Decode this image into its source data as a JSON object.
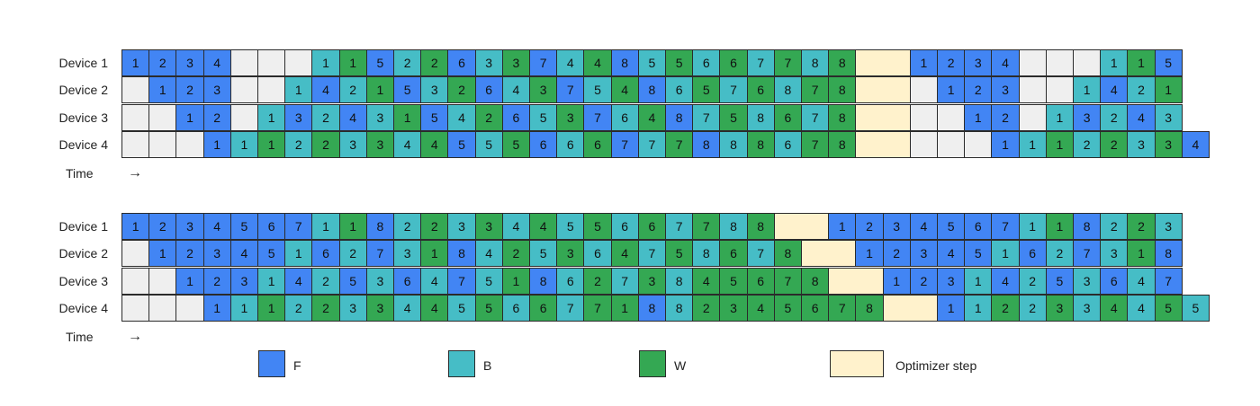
{
  "colors": {
    "F": "#4285f4",
    "B": "#46bdc6",
    "W": "#34a853",
    "O": "#fff2cc",
    "E": "#efefef"
  },
  "time_label": "Time",
  "time_arrow": "→",
  "legend": [
    {
      "key": "F",
      "label": "F"
    },
    {
      "key": "B",
      "label": "B"
    },
    {
      "key": "W",
      "label": "W"
    },
    {
      "key": "O",
      "label": "Optimizer step"
    }
  ],
  "schedules": [
    {
      "rows": [
        {
          "label": "Device 1",
          "cells": "F1 F2 F3 F4 E E E B1 W1 F5 B2 W2 F6 B3 W3 F7 B4 W4 F8 B5 W5 B6 W6 B7 W7 B8 W8 O2 F1 F2 F3 F4 E E E B1 W1 F5"
        },
        {
          "label": "Device 2",
          "cells": "E F1 F2 F3 E E B1 F4 B2 W1 F5 B3 W2 F6 B4 W3 F7 B5 W4 F8 B6 W5 B7 W6 B8 W7 W8 O2 E F1 F2 F3 E E B1 F4 B2 W1"
        },
        {
          "label": "Device 3",
          "cells": "E E F1 F2 E B1 F3 B2 F4 B3 W1 F5 B4 W2 F6 B5 W3 F7 B6 W4 F8 B7 W5 B8 W6 B7 W8 O2 E E F1 F2 E B1 F3 B2 F4 B3"
        },
        {
          "label": "Device 4",
          "cells": "E E E F1 B1 W1 B2 W2 B3 W3 B4 W4 F5 B5 W5 F6 B6 W6 F7 B7 W7 F8 B8 W8 B6 W7 W8 O2 E E E F1 B1 W1 B2 W2 B3 W3 F4"
        }
      ]
    },
    {
      "rows": [
        {
          "label": "Device 1",
          "cells": "F1 F2 F3 F4 F5 F6 F7 B1 W1 F8 B2 W2 B3 W3 B4 W4 B5 W5 B6 W6 B7 W7 B8 W8 O2 F1 F2 F3 F4 F5 F6 F7 B1 W1 F8 B2 W2 B3"
        },
        {
          "label": "Device 2",
          "cells": "E F1 F2 F3 F4 F5 B1 F6 B2 F7 B3 W1 F8 B4 W2 B5 W3 B6 W4 B7 W5 B8 W6 B7 W8 O2 F1 F2 F3 F4 F5 B1 F6 B2 F7 B3 W1 F8"
        },
        {
          "label": "Device 3",
          "cells": "E E F1 F2 F3 B1 F4 B2 F5 B3 F6 B4 F7 B5 W1 F8 B6 W2 B7 W3 B8 W4 W5 W6 W7 W8 O2 F1 F2 F3 B1 F4 B2 F5 B3 F6 B4 F7"
        },
        {
          "label": "Device 4",
          "cells": "E E E F1 B1 W1 B2 W2 B3 W3 B4 W4 B5 W5 B6 W6 B7 W7 W1 F8 B8 W2 W3 W4 W5 W6 W7 W8 O2 F1 B1 W2 B2 W3 B3 W4 B4 W5 B5"
        }
      ]
    }
  ]
}
